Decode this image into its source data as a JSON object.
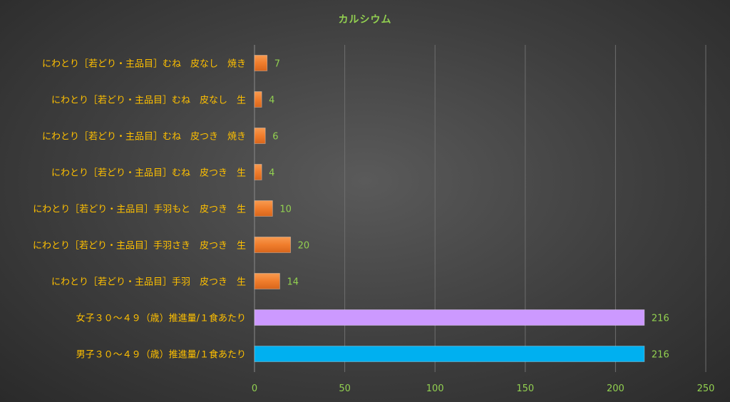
{
  "chart_data": {
    "type": "bar",
    "orientation": "horizontal",
    "title": "カルシウム",
    "categories": [
      "にわとり［若どり・主品目］むね　皮なし　焼き",
      "にわとり［若どり・主品目］むね　皮なし　生",
      "にわとり［若どり・主品目］むね　皮つき　焼き",
      "にわとり［若どり・主品目］むね　皮つき　生",
      "にわとり［若どり・主品目］手羽もと　皮つき　生",
      "にわとり［若どり・主品目］手羽さき　皮つき　生",
      "にわとり［若どり・主品目］手羽　皮つき　生",
      "女子３０～４９（歳）推進量/１食あたり",
      "男子３０～４９（歳）推進量/１食あたり"
    ],
    "values": [
      7,
      4,
      6,
      4,
      10,
      20,
      14,
      216,
      216
    ],
    "bar_colors": [
      "#f07d2c",
      "#f07d2c",
      "#f07d2c",
      "#f07d2c",
      "#f07d2c",
      "#f07d2c",
      "#f07d2c",
      "#cc99ff",
      "#00b0f0"
    ],
    "xlim": [
      0,
      250
    ],
    "xticks": [
      0,
      50,
      100,
      150,
      200,
      250
    ],
    "grid": "vertical",
    "legend": "none",
    "colors": {
      "title": "#92d050",
      "category_label": "#ffc000",
      "tick_label": "#92d050",
      "data_label": "#92d050",
      "gridline": "#6e6e6e"
    }
  }
}
